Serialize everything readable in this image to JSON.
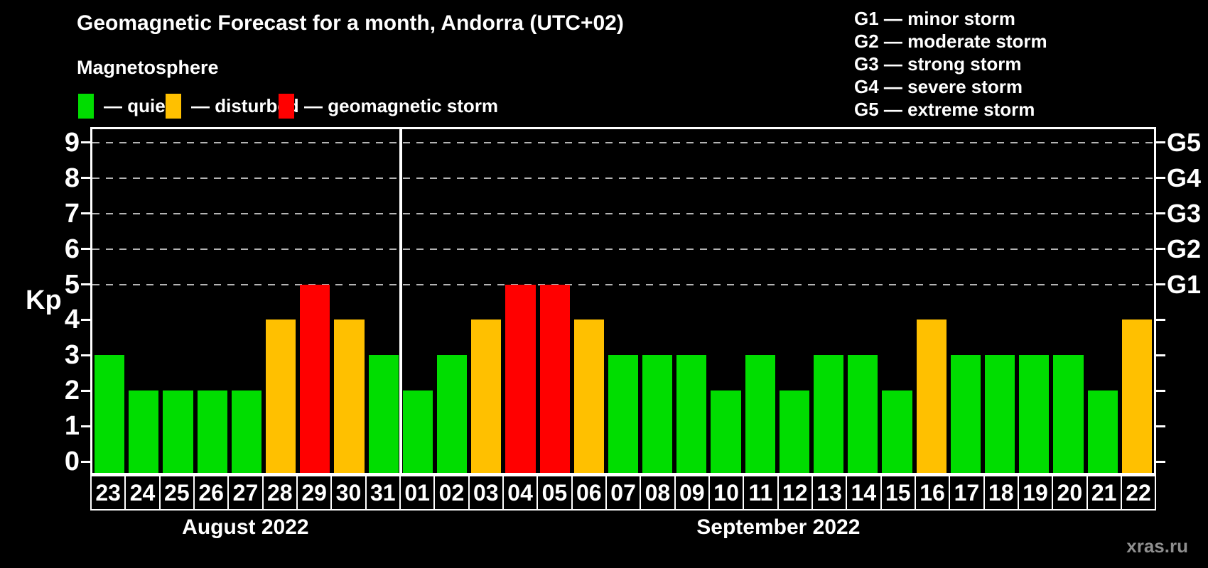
{
  "header": {
    "title": "Geomagnetic Forecast for a month, Andorra (UTC+02)",
    "subtitle": "Magnetosphere",
    "legend": [
      {
        "key": "quiet",
        "color": "#00DD00",
        "label": "— quiet"
      },
      {
        "key": "disturbed",
        "color": "#FFC000",
        "label": "— disturbed"
      },
      {
        "key": "storm",
        "color": "#FF0000",
        "label": "— geomagnetic storm"
      }
    ],
    "g_scale": [
      "G1 — minor storm",
      "G2 — moderate storm",
      "G3 — strong storm",
      "G4 — severe storm",
      "G5 — extreme storm"
    ]
  },
  "chart_data": {
    "type": "bar",
    "title": "Geomagnetic Forecast for a month, Andorra (UTC+02)",
    "ylabel": "Kp",
    "ylim": [
      0,
      9
    ],
    "yticks": [
      0,
      1,
      2,
      3,
      4,
      5,
      6,
      7,
      8,
      9
    ],
    "gridlines_at": [
      5,
      6,
      7,
      8,
      9
    ],
    "grid": "dashed-horizontal",
    "legend_position": "top-left",
    "right_axis": [
      {
        "kp": 5,
        "label": "G1"
      },
      {
        "kp": 6,
        "label": "G2"
      },
      {
        "kp": 7,
        "label": "G3"
      },
      {
        "kp": 8,
        "label": "G4"
      },
      {
        "kp": 9,
        "label": "G5"
      }
    ],
    "status_colors": {
      "quiet": "#00DD00",
      "disturbed": "#FFC000",
      "storm": "#FF0000"
    },
    "months": [
      {
        "label": "August 2022",
        "days": [
          {
            "day": "23",
            "kp": 3,
            "status": "quiet"
          },
          {
            "day": "24",
            "kp": 2,
            "status": "quiet"
          },
          {
            "day": "25",
            "kp": 2,
            "status": "quiet"
          },
          {
            "day": "26",
            "kp": 2,
            "status": "quiet"
          },
          {
            "day": "27",
            "kp": 2,
            "status": "quiet"
          },
          {
            "day": "28",
            "kp": 4,
            "status": "disturbed"
          },
          {
            "day": "29",
            "kp": 5,
            "status": "storm"
          },
          {
            "day": "30",
            "kp": 4,
            "status": "disturbed"
          },
          {
            "day": "31",
            "kp": 3,
            "status": "quiet"
          }
        ]
      },
      {
        "label": "September 2022",
        "days": [
          {
            "day": "01",
            "kp": 2,
            "status": "quiet"
          },
          {
            "day": "02",
            "kp": 3,
            "status": "quiet"
          },
          {
            "day": "03",
            "kp": 4,
            "status": "disturbed"
          },
          {
            "day": "04",
            "kp": 5,
            "status": "storm"
          },
          {
            "day": "05",
            "kp": 5,
            "status": "storm"
          },
          {
            "day": "06",
            "kp": 4,
            "status": "disturbed"
          },
          {
            "day": "07",
            "kp": 3,
            "status": "quiet"
          },
          {
            "day": "08",
            "kp": 3,
            "status": "quiet"
          },
          {
            "day": "09",
            "kp": 3,
            "status": "quiet"
          },
          {
            "day": "10",
            "kp": 2,
            "status": "quiet"
          },
          {
            "day": "11",
            "kp": 3,
            "status": "quiet"
          },
          {
            "day": "12",
            "kp": 2,
            "status": "quiet"
          },
          {
            "day": "13",
            "kp": 3,
            "status": "quiet"
          },
          {
            "day": "14",
            "kp": 3,
            "status": "quiet"
          },
          {
            "day": "15",
            "kp": 2,
            "status": "quiet"
          },
          {
            "day": "16",
            "kp": 4,
            "status": "disturbed"
          },
          {
            "day": "17",
            "kp": 3,
            "status": "quiet"
          },
          {
            "day": "18",
            "kp": 3,
            "status": "quiet"
          },
          {
            "day": "19",
            "kp": 3,
            "status": "quiet"
          },
          {
            "day": "20",
            "kp": 3,
            "status": "quiet"
          },
          {
            "day": "21",
            "kp": 2,
            "status": "quiet"
          },
          {
            "day": "22",
            "kp": 4,
            "status": "disturbed"
          }
        ]
      }
    ]
  },
  "watermark": "xras.ru"
}
